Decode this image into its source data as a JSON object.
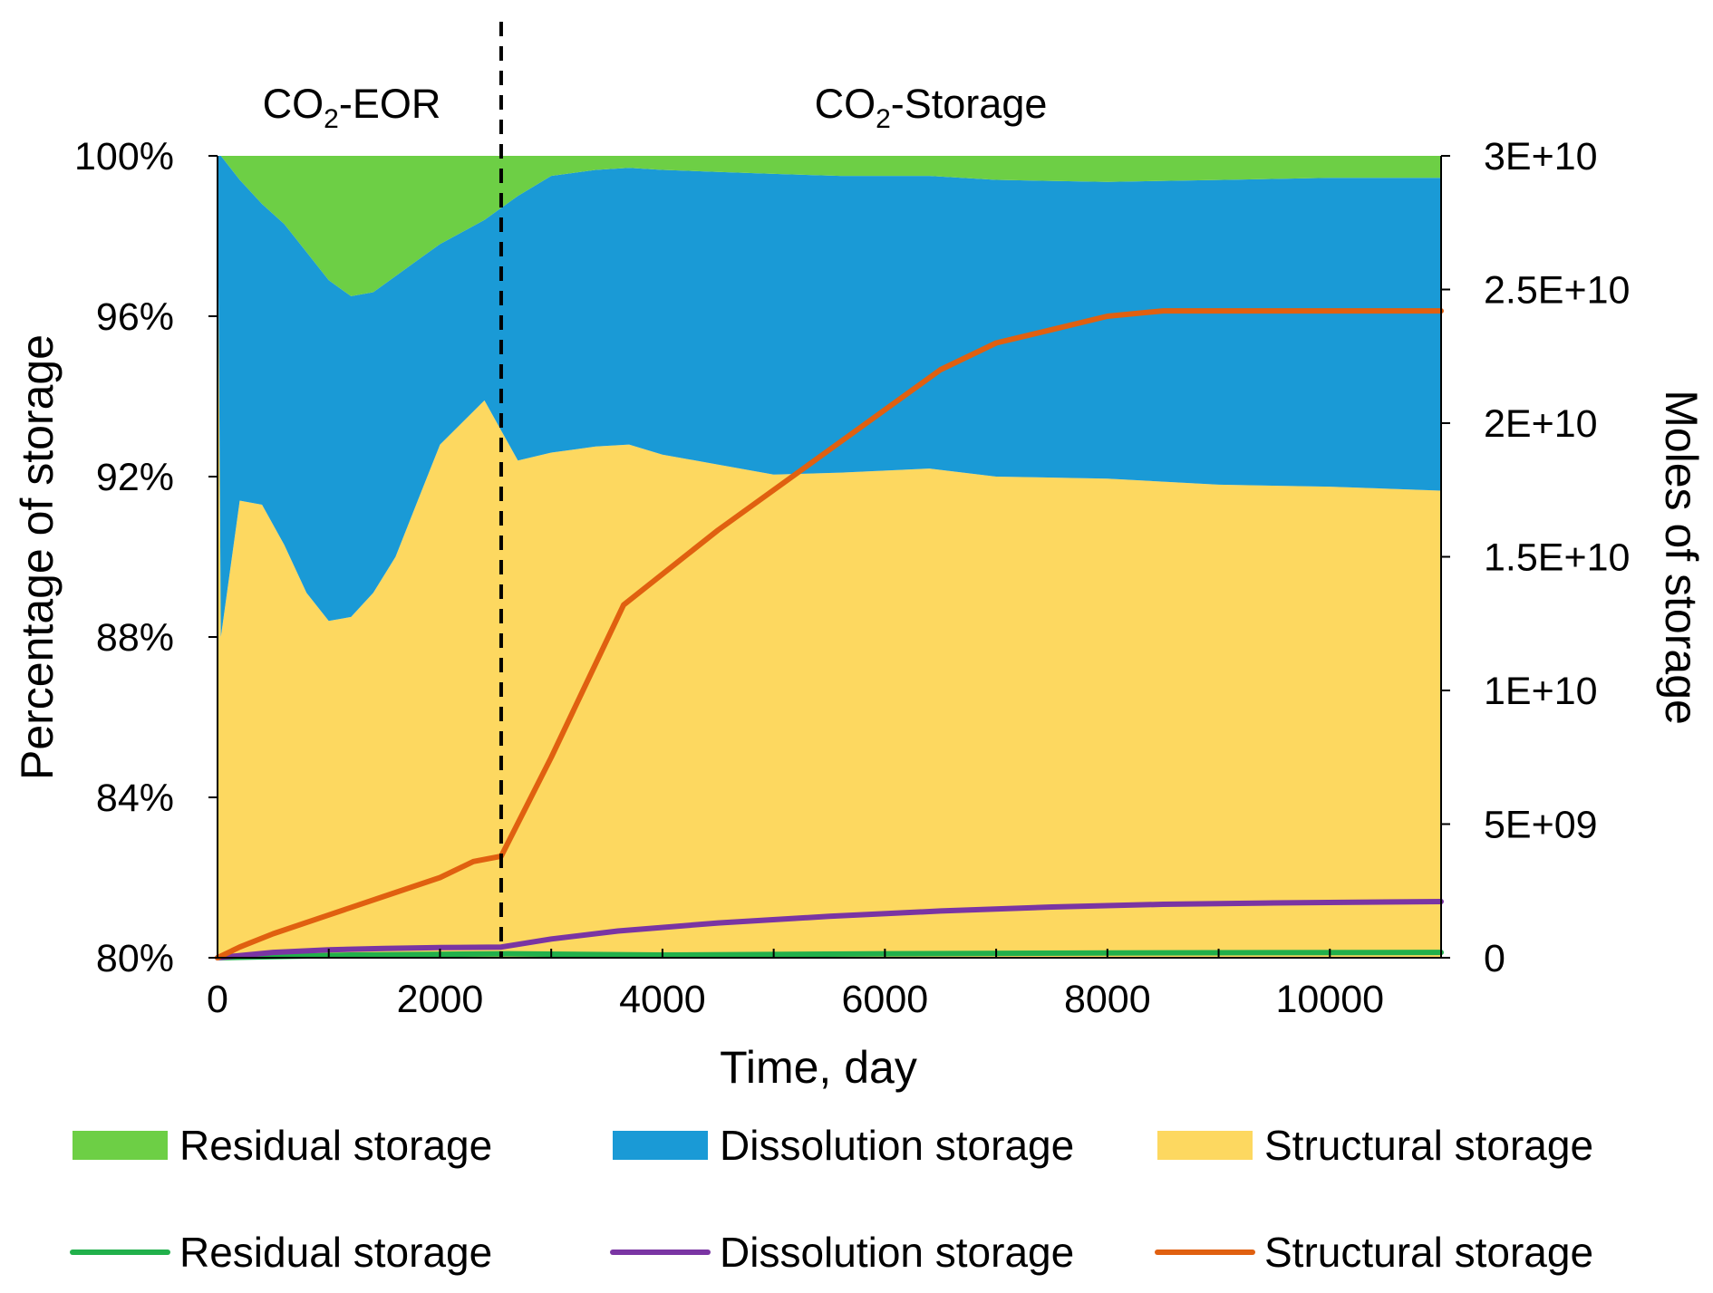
{
  "chart_data": {
    "type": "area",
    "title": "",
    "xlabel": "Time, day",
    "ylabel_left": "Percentage of storage",
    "ylabel_right": "Moles of storage",
    "xlim": [
      0,
      11000
    ],
    "ylim_left": [
      80,
      100
    ],
    "ylim_right": [
      0,
      30000000000
    ],
    "x_ticks": [
      "0",
      "2000",
      "4000",
      "6000",
      "8000",
      "10000"
    ],
    "y_ticks_left": [
      "80%",
      "84%",
      "88%",
      "92%",
      "96%",
      "100%"
    ],
    "y_ticks_right": [
      "0",
      "5E+09",
      "1E+10",
      "1.5E+10",
      "2E+10",
      "2.5E+10",
      "3E+10"
    ],
    "phase_divider_x": 2550,
    "phase_labels": [
      {
        "text": "CO",
        "sub": "2",
        "suffix": "-EOR"
      },
      {
        "text": "CO",
        "sub": "2",
        "suffix": "-Storage"
      }
    ],
    "area_series": [
      {
        "name": "Residual storage",
        "color": "#6dcf45",
        "values_pct": [
          0,
          0,
          0.6,
          1.2,
          1.7,
          2.4,
          3.1,
          3.5,
          3.4,
          3.0,
          2.6,
          2.2,
          1.6,
          1.0,
          0.5,
          0.35,
          0.3,
          0.35,
          0.4,
          0.45,
          0.5,
          0.5,
          0.6,
          0.65,
          0.6,
          0.55,
          0.55
        ]
      },
      {
        "name": "Dissolution storage",
        "color": "#1a9ad6",
        "values_pct": [
          0,
          12,
          8,
          7.5,
          8.0,
          8.5,
          8.5,
          8.0,
          7.5,
          7.0,
          6.0,
          5.0,
          4.5,
          6.6,
          6.9,
          6.9,
          6.9,
          7.1,
          7.3,
          7.5,
          7.4,
          7.3,
          7.4,
          7.4,
          7.6,
          7.7,
          7.8
        ]
      },
      {
        "name": "Structural storage",
        "color": "#fdd860",
        "values_pct": [
          100,
          88,
          91.4,
          91.3,
          90.3,
          89.1,
          88.4,
          88.5,
          89.1,
          90.0,
          91.4,
          92.8,
          93.9,
          92.4,
          92.6,
          92.75,
          92.8,
          92.55,
          92.3,
          92.05,
          92.1,
          92.2,
          92.0,
          91.95,
          91.8,
          91.75,
          91.65
        ]
      }
    ],
    "area_x": [
      0,
      30,
      200,
      400,
      600,
      800,
      1000,
      1200,
      1400,
      1600,
      1800,
      2000,
      2400,
      2700,
      3000,
      3400,
      3700,
      4000,
      4500,
      5000,
      5600,
      6400,
      7000,
      8000,
      9000,
      10000,
      11000
    ],
    "line_series": [
      {
        "name": "Residual storage",
        "color": "#21b04b",
        "x": [
          0,
          1200,
          2600,
          4000,
          6000,
          8000,
          11000
        ],
        "y": [
          0,
          100000000,
          150000000,
          100000000,
          150000000,
          180000000,
          200000000
        ]
      },
      {
        "name": "Dissolution storage",
        "color": "#7a35a3",
        "x": [
          0,
          500,
          1000,
          1500,
          2000,
          2550,
          3000,
          3600,
          4500,
          5500,
          6500,
          7500,
          8500,
          9500,
          11000
        ],
        "y": [
          0,
          200000000,
          300000000,
          350000000,
          380000000,
          400000000,
          700000000,
          1000000000,
          1300000000,
          1550000000,
          1750000000,
          1900000000,
          2000000000,
          2050000000,
          2100000000
        ]
      },
      {
        "name": "Structural storage",
        "color": "#e06010",
        "x": [
          0,
          200,
          500,
          1000,
          1500,
          2000,
          2300,
          2550,
          3000,
          3650,
          4500,
          5500,
          6500,
          7000,
          7500,
          8000,
          8500,
          11000
        ],
        "y": [
          0,
          400000000,
          900000000,
          1600000000,
          2300000000,
          3000000000,
          3600000000,
          3800000000,
          7500000000,
          13200000000,
          16000000000,
          19000000000,
          22000000000,
          23000000000,
          23500000000,
          24000000000,
          24200000000,
          24200000000
        ]
      }
    ],
    "legend": [
      {
        "label": "Residual storage",
        "kind": "area",
        "color": "#6dcf45"
      },
      {
        "label": "Dissolution storage",
        "kind": "area",
        "color": "#1a9ad6"
      },
      {
        "label": "Structural storage",
        "kind": "area",
        "color": "#fdd860"
      },
      {
        "label": "Residual storage",
        "kind": "line",
        "color": "#21b04b"
      },
      {
        "label": "Dissolution storage",
        "kind": "line",
        "color": "#7a35a3"
      },
      {
        "label": "Structural storage",
        "kind": "line",
        "color": "#e06010"
      }
    ],
    "legend_position": "bottom"
  }
}
